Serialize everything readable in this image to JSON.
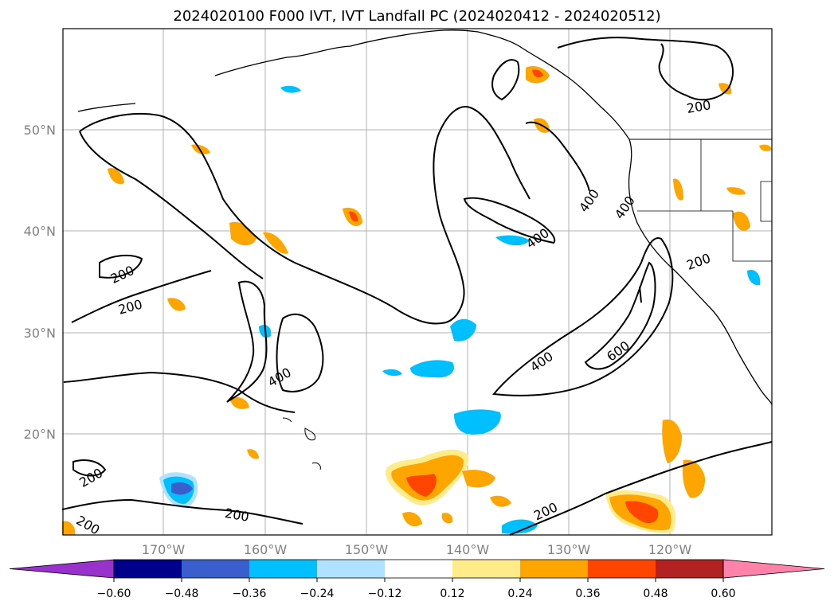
{
  "title": "2024020100 F000 IVT, IVT Landfall PC (2024020412 - 2024020512)",
  "lat_labels": [
    "50°N",
    "40°N",
    "30°N",
    "20°N"
  ],
  "lon_labels": [
    "170°W",
    "160°W",
    "150°W",
    "140°W",
    "130°W",
    "120°W"
  ],
  "contour_labels": [
    "200",
    "200",
    "200",
    "200",
    "200",
    "200",
    "200",
    "200",
    "400",
    "400",
    "400",
    "400",
    "400",
    "600"
  ],
  "colorbar": {
    "ticks": [
      "−0.60",
      "−0.48",
      "−0.36",
      "−0.24",
      "−0.12",
      "0.12",
      "0.24",
      "0.36",
      "0.48",
      "0.60"
    ],
    "colors": [
      "#9932cc",
      "#00008b",
      "#3a5fcd",
      "#00bfff",
      "#b0e2ff",
      "#ffffff",
      "#ffeb8a",
      "#ffa500",
      "#ff4500",
      "#b22222",
      "#ff82ab"
    ]
  }
}
